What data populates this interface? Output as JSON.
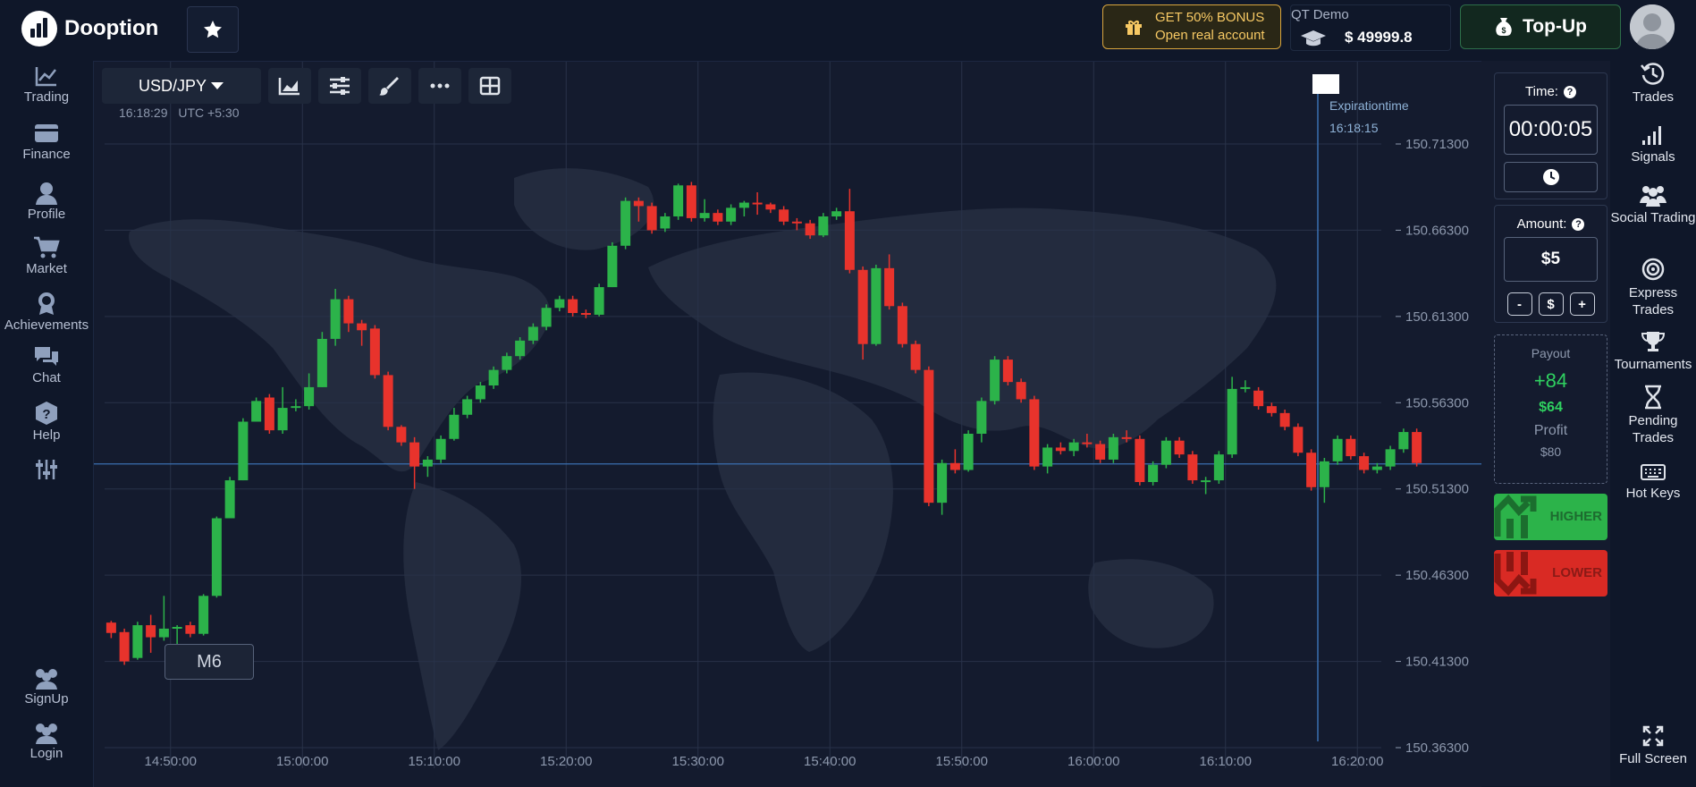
{
  "app": {
    "name": "Dooption",
    "bonus_line1": "GET 50% BONUS",
    "bonus_line2": "Open real account",
    "account_label": "QT Demo",
    "balance": "$ 49999.8",
    "topup_label": "Top-Up"
  },
  "left_nav": [
    {
      "label": "Trading",
      "icon": "chart-line-icon"
    },
    {
      "label": "Finance",
      "icon": "wallet-icon"
    },
    {
      "label": "Profile",
      "icon": "user-icon"
    },
    {
      "label": "Market",
      "icon": "cart-icon"
    },
    {
      "label": "Achievements",
      "icon": "medal-icon"
    },
    {
      "label": "Chat",
      "icon": "chat-icon"
    },
    {
      "label": "Help",
      "icon": "help-icon"
    },
    {
      "label": "",
      "icon": "sliders-icon"
    },
    {
      "label": "SignUp",
      "icon": "users-icon"
    },
    {
      "label": "Login",
      "icon": "users-icon"
    }
  ],
  "right_nav": [
    {
      "label": "Trades",
      "icon": "history-icon"
    },
    {
      "label": "Signals",
      "icon": "signal-icon"
    },
    {
      "label": "Social Trading",
      "icon": "people-icon"
    },
    {
      "label": "Express Trades",
      "icon": "target-icon"
    },
    {
      "label": "Tournaments",
      "icon": "trophy-icon"
    },
    {
      "label": "Pending Trades",
      "icon": "hourglass-icon"
    },
    {
      "label": "Hot Keys",
      "icon": "keyboard-icon"
    },
    {
      "label": "Full Screen",
      "icon": "fullscreen-icon"
    }
  ],
  "chart": {
    "pair": "USD/JPY",
    "clock": "16:18:29",
    "timezone": "UTC +5:30",
    "timeframe": "M6",
    "expiration_label": "Expirationtime",
    "expiration_time": "16:18:15",
    "colors": {
      "up": "#2cb34a",
      "down": "#e8332c"
    }
  },
  "chart_data": {
    "type": "candlestick",
    "title": "",
    "xlabel": "",
    "ylabel": "",
    "ylim": [
      150.363,
      150.735
    ],
    "y_ticks": [
      "150.71300",
      "150.66300",
      "150.61300",
      "150.56300",
      "150.51300",
      "150.46300",
      "150.41300",
      "150.36300"
    ],
    "x_ticks": [
      "14:50:00",
      "15:00:00",
      "15:10:00",
      "15:20:00",
      "15:30:00",
      "15:40:00",
      "15:50:00",
      "16:00:00",
      "16:10:00",
      "16:20:00"
    ],
    "x_ticks_min": [
      5,
      15,
      25,
      35,
      45,
      55,
      65,
      75,
      85,
      95
    ],
    "x_range_min": [
      0,
      104
    ],
    "candle_start_min": 0,
    "candle_step_min": 1,
    "current_price": 150.5275,
    "expiration_min": 92.0,
    "candles": [
      {
        "o": 150.4355,
        "c": 150.4295,
        "h": 150.4365,
        "l": 150.4265
      },
      {
        "o": 150.43,
        "c": 150.413,
        "h": 150.432,
        "l": 150.411
      },
      {
        "o": 150.415,
        "c": 150.434,
        "h": 150.436,
        "l": 150.414
      },
      {
        "o": 150.434,
        "c": 150.427,
        "h": 150.44,
        "l": 150.418
      },
      {
        "o": 150.427,
        "c": 150.432,
        "h": 150.451,
        "l": 150.425
      },
      {
        "o": 150.432,
        "c": 150.433,
        "h": 150.434,
        "l": 150.418
      },
      {
        "o": 150.434,
        "c": 150.429,
        "h": 150.436,
        "l": 150.427
      },
      {
        "o": 150.429,
        "c": 150.451,
        "h": 150.452,
        "l": 150.428
      },
      {
        "o": 150.451,
        "c": 150.496,
        "h": 150.497,
        "l": 150.45
      },
      {
        "o": 150.496,
        "c": 150.518,
        "h": 150.52,
        "l": 150.496
      },
      {
        "o": 150.518,
        "c": 150.552,
        "h": 150.554,
        "l": 150.518
      },
      {
        "o": 150.552,
        "c": 150.564,
        "h": 150.566,
        "l": 150.552
      },
      {
        "o": 150.566,
        "c": 150.547,
        "h": 150.568,
        "l": 150.545
      },
      {
        "o": 150.547,
        "c": 150.56,
        "h": 150.572,
        "l": 150.545
      },
      {
        "o": 150.56,
        "c": 150.561,
        "h": 150.565,
        "l": 150.558
      },
      {
        "o": 150.561,
        "c": 150.572,
        "h": 150.58,
        "l": 150.559
      },
      {
        "o": 150.572,
        "c": 150.6,
        "h": 150.604,
        "l": 150.572
      },
      {
        "o": 150.6,
        "c": 150.623,
        "h": 150.629,
        "l": 150.596
      },
      {
        "o": 150.623,
        "c": 150.609,
        "h": 150.625,
        "l": 150.604
      },
      {
        "o": 150.609,
        "c": 150.605,
        "h": 150.611,
        "l": 150.596
      },
      {
        "o": 150.606,
        "c": 150.579,
        "h": 150.608,
        "l": 150.577
      },
      {
        "o": 150.579,
        "c": 150.549,
        "h": 150.581,
        "l": 150.547
      },
      {
        "o": 150.549,
        "c": 150.54,
        "h": 150.55,
        "l": 150.538
      },
      {
        "o": 150.54,
        "c": 150.526,
        "h": 150.543,
        "l": 150.513
      },
      {
        "o": 150.526,
        "c": 150.53,
        "h": 150.532,
        "l": 150.52
      },
      {
        "o": 150.53,
        "c": 150.542,
        "h": 150.544,
        "l": 150.528
      },
      {
        "o": 150.542,
        "c": 150.556,
        "h": 150.56,
        "l": 150.541
      },
      {
        "o": 150.556,
        "c": 150.565,
        "h": 150.567,
        "l": 150.554
      },
      {
        "o": 150.565,
        "c": 150.573,
        "h": 150.575,
        "l": 150.563
      },
      {
        "o": 150.573,
        "c": 150.582,
        "h": 150.584,
        "l": 150.571
      },
      {
        "o": 150.582,
        "c": 150.59,
        "h": 150.592,
        "l": 150.58
      },
      {
        "o": 150.59,
        "c": 150.599,
        "h": 150.601,
        "l": 150.588
      },
      {
        "o": 150.599,
        "c": 150.607,
        "h": 150.609,
        "l": 150.597
      },
      {
        "o": 150.607,
        "c": 150.618,
        "h": 150.62,
        "l": 150.605
      },
      {
        "o": 150.618,
        "c": 150.623,
        "h": 150.625,
        "l": 150.616
      },
      {
        "o": 150.623,
        "c": 150.615,
        "h": 150.625,
        "l": 150.613
      },
      {
        "o": 150.615,
        "c": 150.614,
        "h": 150.617,
        "l": 150.612
      },
      {
        "o": 150.614,
        "c": 150.63,
        "h": 150.632,
        "l": 150.613
      },
      {
        "o": 150.63,
        "c": 150.654,
        "h": 150.656,
        "l": 150.63
      },
      {
        "o": 150.654,
        "c": 150.68,
        "h": 150.682,
        "l": 150.652
      },
      {
        "o": 150.68,
        "c": 150.677,
        "h": 150.682,
        "l": 150.668
      },
      {
        "o": 150.677,
        "c": 150.663,
        "h": 150.679,
        "l": 150.661
      },
      {
        "o": 150.664,
        "c": 150.671,
        "h": 150.673,
        "l": 150.662
      },
      {
        "o": 150.671,
        "c": 150.689,
        "h": 150.69,
        "l": 150.669
      },
      {
        "o": 150.689,
        "c": 150.67,
        "h": 150.691,
        "l": 150.668
      },
      {
        "o": 150.67,
        "c": 150.673,
        "h": 150.681,
        "l": 150.668
      },
      {
        "o": 150.673,
        "c": 150.668,
        "h": 150.675,
        "l": 150.666
      },
      {
        "o": 150.668,
        "c": 150.676,
        "h": 150.678,
        "l": 150.666
      },
      {
        "o": 150.676,
        "c": 150.679,
        "h": 150.68,
        "l": 150.671
      },
      {
        "o": 150.679,
        "c": 150.678,
        "h": 150.685,
        "l": 150.672
      },
      {
        "o": 150.678,
        "c": 150.675,
        "h": 150.679,
        "l": 150.673
      },
      {
        "o": 150.675,
        "c": 150.668,
        "h": 150.677,
        "l": 150.666
      },
      {
        "o": 150.668,
        "c": 150.667,
        "h": 150.67,
        "l": 150.663
      },
      {
        "o": 150.667,
        "c": 150.66,
        "h": 150.669,
        "l": 150.658
      },
      {
        "o": 150.66,
        "c": 150.671,
        "h": 150.673,
        "l": 150.659
      },
      {
        "o": 150.671,
        "c": 150.674,
        "h": 150.676,
        "l": 150.669
      },
      {
        "o": 150.674,
        "c": 150.64,
        "h": 150.687,
        "l": 150.638
      },
      {
        "o": 150.64,
        "c": 150.597,
        "h": 150.642,
        "l": 150.588
      },
      {
        "o": 150.597,
        "c": 150.641,
        "h": 150.643,
        "l": 150.596
      },
      {
        "o": 150.641,
        "c": 150.619,
        "h": 150.649,
        "l": 150.617
      },
      {
        "o": 150.619,
        "c": 150.597,
        "h": 150.621,
        "l": 150.595
      },
      {
        "o": 150.597,
        "c": 150.582,
        "h": 150.599,
        "l": 150.58
      },
      {
        "o": 150.582,
        "c": 150.505,
        "h": 150.584,
        "l": 150.503
      },
      {
        "o": 150.505,
        "c": 150.528,
        "h": 150.53,
        "l": 150.498
      },
      {
        "o": 150.528,
        "c": 150.524,
        "h": 150.536,
        "l": 150.522
      },
      {
        "o": 150.524,
        "c": 150.545,
        "h": 150.547,
        "l": 150.523
      },
      {
        "o": 150.545,
        "c": 150.564,
        "h": 150.566,
        "l": 150.54
      },
      {
        "o": 150.564,
        "c": 150.588,
        "h": 150.59,
        "l": 150.562
      },
      {
        "o": 150.588,
        "c": 150.575,
        "h": 150.59,
        "l": 150.573
      },
      {
        "o": 150.575,
        "c": 150.565,
        "h": 150.577,
        "l": 150.563
      },
      {
        "o": 150.565,
        "c": 150.526,
        "h": 150.567,
        "l": 150.524
      },
      {
        "o": 150.526,
        "c": 150.537,
        "h": 150.539,
        "l": 150.522
      },
      {
        "o": 150.537,
        "c": 150.535,
        "h": 150.54,
        "l": 150.533
      },
      {
        "o": 150.535,
        "c": 150.54,
        "h": 150.542,
        "l": 150.532
      },
      {
        "o": 150.54,
        "c": 150.539,
        "h": 150.545,
        "l": 150.537
      },
      {
        "o": 150.539,
        "c": 150.53,
        "h": 150.541,
        "l": 150.528
      },
      {
        "o": 150.53,
        "c": 150.543,
        "h": 150.545,
        "l": 150.528
      },
      {
        "o": 150.543,
        "c": 150.542,
        "h": 150.547,
        "l": 150.54
      },
      {
        "o": 150.542,
        "c": 150.517,
        "h": 150.544,
        "l": 150.515
      },
      {
        "o": 150.517,
        "c": 150.527,
        "h": 150.529,
        "l": 150.515
      },
      {
        "o": 150.527,
        "c": 150.541,
        "h": 150.543,
        "l": 150.525
      },
      {
        "o": 150.541,
        "c": 150.533,
        "h": 150.543,
        "l": 150.531
      },
      {
        "o": 150.533,
        "c": 150.518,
        "h": 150.535,
        "l": 150.516
      },
      {
        "o": 150.518,
        "c": 150.518,
        "h": 150.52,
        "l": 150.51
      },
      {
        "o": 150.518,
        "c": 150.533,
        "h": 150.535,
        "l": 150.516
      },
      {
        "o": 150.533,
        "c": 150.571,
        "h": 150.578,
        "l": 150.531
      },
      {
        "o": 150.571,
        "c": 150.572,
        "h": 150.576,
        "l": 150.569
      },
      {
        "o": 150.57,
        "c": 150.561,
        "h": 150.572,
        "l": 150.559
      },
      {
        "o": 150.561,
        "c": 150.557,
        "h": 150.563,
        "l": 150.555
      },
      {
        "o": 150.557,
        "c": 150.549,
        "h": 150.559,
        "l": 150.547
      },
      {
        "o": 150.549,
        "c": 150.534,
        "h": 150.551,
        "l": 150.532
      },
      {
        "o": 150.534,
        "c": 150.514,
        "h": 150.536,
        "l": 150.512
      },
      {
        "o": 150.514,
        "c": 150.529,
        "h": 150.531,
        "l": 150.505
      },
      {
        "o": 150.529,
        "c": 150.542,
        "h": 150.544,
        "l": 150.527
      },
      {
        "o": 150.542,
        "c": 150.532,
        "h": 150.544,
        "l": 150.53
      },
      {
        "o": 150.532,
        "c": 150.524,
        "h": 150.534,
        "l": 150.522
      },
      {
        "o": 150.524,
        "c": 150.526,
        "h": 150.528,
        "l": 150.522
      },
      {
        "o": 150.526,
        "c": 150.536,
        "h": 150.538,
        "l": 150.524
      },
      {
        "o": 150.536,
        "c": 150.546,
        "h": 150.548,
        "l": 150.534
      },
      {
        "o": 150.546,
        "c": 150.528,
        "h": 150.548,
        "l": 150.526
      }
    ]
  },
  "trade_panel": {
    "time_label": "Time:",
    "time_value": "00:00:05",
    "amount_label": "Amount:",
    "amount_value": "$5",
    "minus": "-",
    "dollar": "$",
    "plus": "+",
    "help": "?",
    "payout_label": "Payout",
    "payout_percent": "+84",
    "payout_amount": "$64",
    "profit_label": "Profit",
    "profit_amount": "$80",
    "higher_label": "HIGHER",
    "lower_label": "LOWER"
  }
}
